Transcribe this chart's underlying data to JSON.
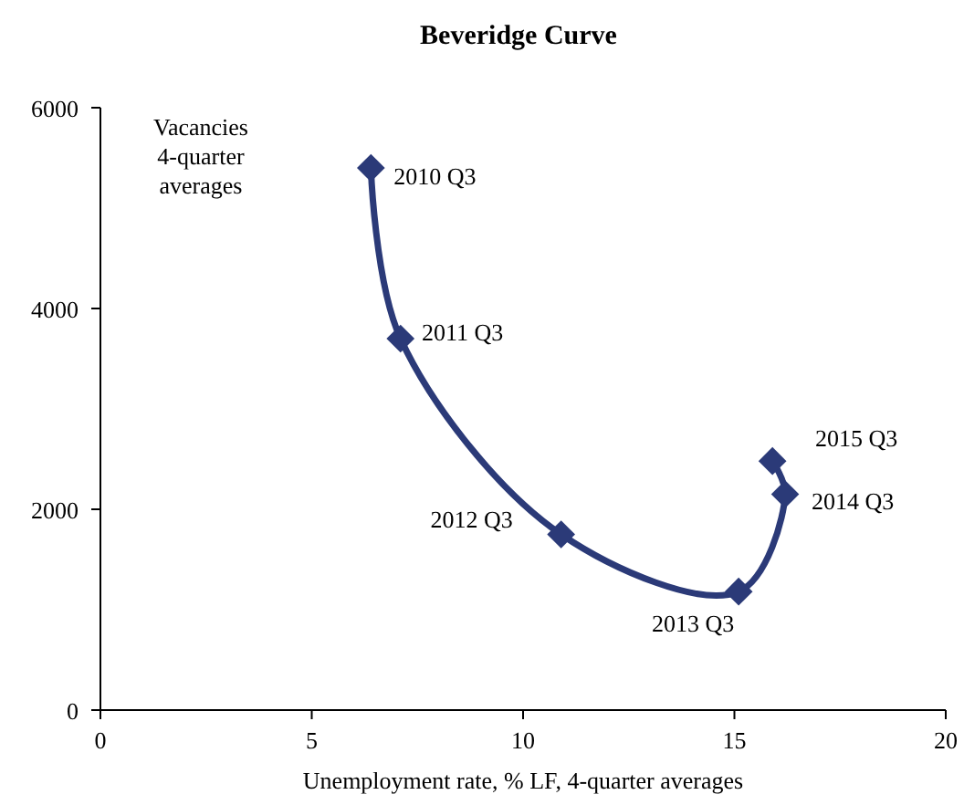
{
  "chart_data": {
    "type": "line",
    "title": "Beveridge Curve",
    "xlabel": "Unemployment rate, % LF, 4-quarter averages",
    "ylabel": "Vacancies 4-quarter averages",
    "x": [
      6.4,
      7.1,
      10.9,
      15.1,
      16.2,
      15.9
    ],
    "series": [
      {
        "color": "#2b3a78",
        "values": [
          5400,
          3700,
          1750,
          1180,
          2150,
          2480
        ]
      }
    ],
    "marker": "diamond",
    "line_style": "solid",
    "grid": false,
    "xlim": [
      0,
      20
    ],
    "xticks": [
      0,
      5,
      10,
      15,
      20
    ],
    "ylim": [
      0,
      6000
    ],
    "yticks": [
      0,
      2000,
      4000,
      6000
    ],
    "annotations": [
      {
        "text": "2010 Q3",
        "x": 6.4,
        "y": 5400
      },
      {
        "text": "2011 Q3",
        "x": 7.1,
        "y": 3700
      },
      {
        "text": "2012 Q3",
        "x": 10.9,
        "y": 1750
      },
      {
        "text": "2013 Q3",
        "x": 15.1,
        "y": 1180
      },
      {
        "text": "2014 Q3",
        "x": 16.2,
        "y": 2150
      },
      {
        "text": "2015 Q3",
        "x": 15.9,
        "y": 2480
      }
    ]
  }
}
